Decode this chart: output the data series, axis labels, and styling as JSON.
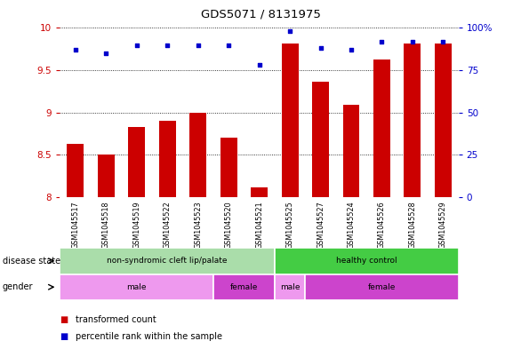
{
  "title": "GDS5071 / 8131975",
  "samples": [
    "GSM1045517",
    "GSM1045518",
    "GSM1045519",
    "GSM1045522",
    "GSM1045523",
    "GSM1045520",
    "GSM1045521",
    "GSM1045525",
    "GSM1045527",
    "GSM1045524",
    "GSM1045526",
    "GSM1045528",
    "GSM1045529"
  ],
  "transformed_count": [
    8.63,
    8.5,
    8.83,
    8.9,
    9.0,
    8.7,
    8.12,
    9.82,
    9.36,
    9.09,
    9.63,
    9.82,
    9.82
  ],
  "percentile_rank": [
    87,
    85,
    90,
    90,
    90,
    90,
    78,
    98,
    88,
    87,
    92,
    92,
    92
  ],
  "ylim_left": [
    8.0,
    10.0
  ],
  "ylim_right": [
    0,
    100
  ],
  "yticks_left": [
    8.0,
    8.5,
    9.0,
    9.5,
    10.0
  ],
  "yticks_right": [
    0,
    25,
    50,
    75,
    100
  ],
  "bar_color": "#cc0000",
  "dot_color": "#0000cc",
  "disease_state_groups": [
    {
      "label": "non-syndromic cleft lip/palate",
      "start": 0,
      "end": 7,
      "color": "#aaddaa"
    },
    {
      "label": "healthy control",
      "start": 7,
      "end": 13,
      "color": "#44cc44"
    }
  ],
  "gender_groups": [
    {
      "label": "male",
      "start": 0,
      "end": 5,
      "color": "#ee99ee"
    },
    {
      "label": "female",
      "start": 5,
      "end": 7,
      "color": "#cc44cc"
    },
    {
      "label": "male",
      "start": 7,
      "end": 8,
      "color": "#ee99ee"
    },
    {
      "label": "female",
      "start": 8,
      "end": 13,
      "color": "#cc44cc"
    }
  ],
  "sample_bg_color": "#c8c8c8",
  "legend_items": [
    {
      "label": "transformed count",
      "color": "#cc0000"
    },
    {
      "label": "percentile rank within the sample",
      "color": "#0000cc"
    }
  ]
}
